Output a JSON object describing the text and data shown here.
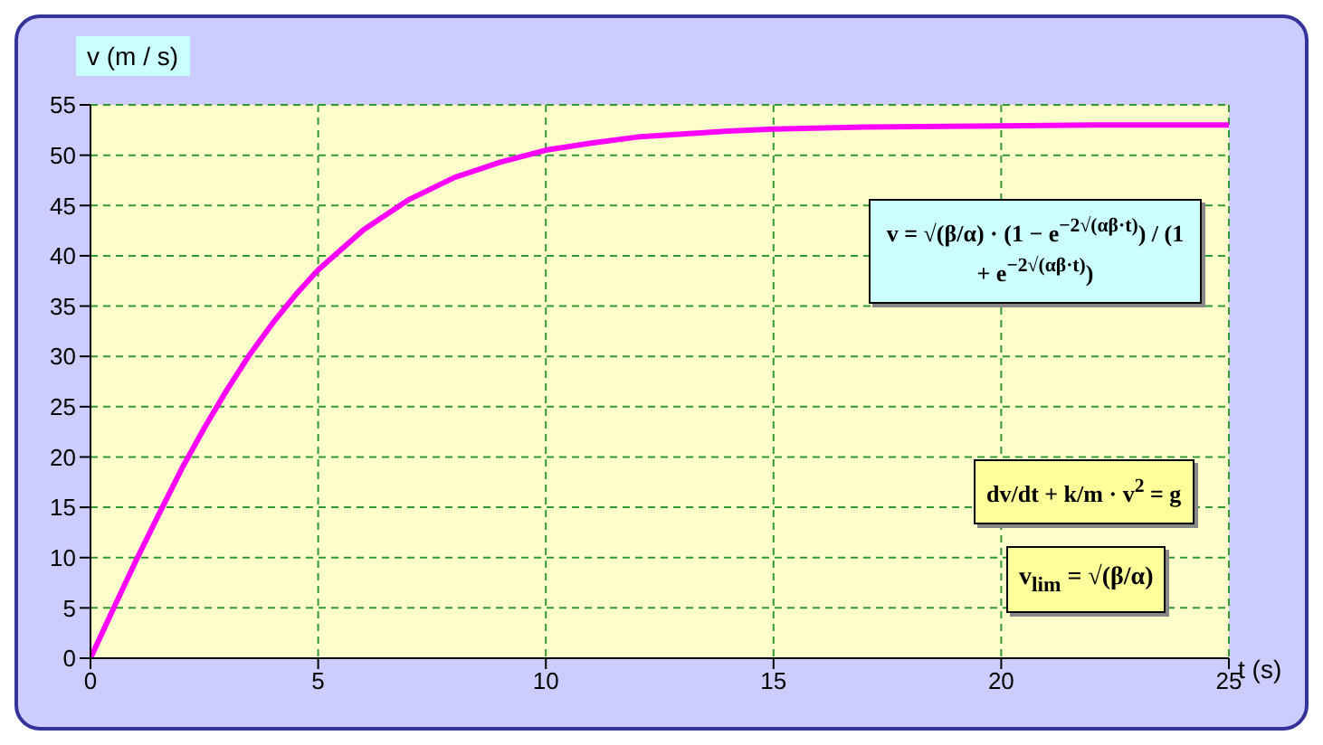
{
  "chart_data": {
    "type": "line",
    "xlabel": "t (s)",
    "ylabel": "v (m / s)",
    "x": [
      0,
      0.5,
      1,
      1.5,
      2,
      2.5,
      3,
      3.5,
      4,
      4.5,
      5,
      6,
      7,
      8,
      9,
      10,
      11,
      12,
      13,
      14,
      15,
      17,
      20,
      22,
      25
    ],
    "series": [
      {
        "color": "#ff00ff",
        "values": [
          0,
          4.9,
          9.7,
          14.3,
          18.8,
          22.9,
          26.7,
          30.2,
          33.3,
          36.1,
          38.6,
          42.6,
          45.6,
          47.8,
          49.3,
          50.5,
          51.2,
          51.8,
          52.1,
          52.4,
          52.6,
          52.8,
          52.9,
          53,
          53
        ]
      }
    ],
    "xlim": [
      0,
      25
    ],
    "xticks": [
      0,
      5,
      10,
      15,
      20,
      25
    ],
    "ylim": [
      0,
      55
    ],
    "yticks": [
      0,
      5,
      10,
      15,
      20,
      25,
      30,
      35,
      40,
      45,
      50,
      55
    ],
    "grid": true,
    "marker": "none",
    "line_style": "solid",
    "annotations": [
      "v = √(β/α) · (1 − e$^{−2√(αβ·t)}$) / (1 + e$^{−2√(αβ·t)}$)",
      "dv/dt + k/m · v$^{2}$ = g",
      "v$_{lim}$ = √(β/α)"
    ]
  }
}
